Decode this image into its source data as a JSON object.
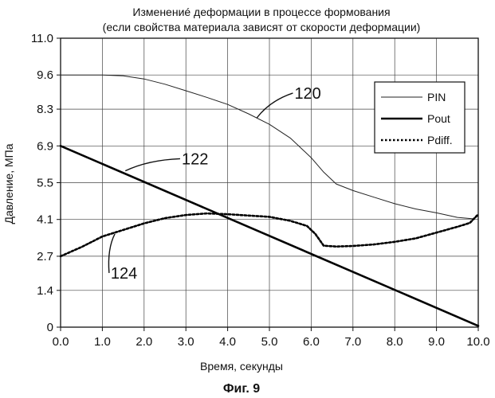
{
  "chart_data": {
    "type": "line",
    "title": "Изменениé деформации в процессе формования",
    "subtitle": "(если свойства материала зависят от скорости деформации)",
    "xlabel": "Время, секунды",
    "ylabel": "Давление, МПа",
    "caption": "Фиг. 9",
    "xlim": [
      0.0,
      10.0
    ],
    "ylim": [
      0,
      11.0
    ],
    "x_ticks": [
      "0.0",
      "1.0",
      "2.0",
      "3.0",
      "4.0",
      "5.0",
      "6.0",
      "7.0",
      "8.0",
      "9.0",
      "10.0"
    ],
    "y_ticks": [
      "0",
      "1.4",
      "2.7",
      "4.1",
      "5.5",
      "6.9",
      "8.3",
      "9.6",
      "11.0"
    ],
    "grid": true,
    "legend_position": "top-right",
    "series": [
      {
        "name": "PIN",
        "style": "thin",
        "x": [
          0,
          1,
          1.5,
          2,
          2.5,
          3,
          3.5,
          4,
          4.5,
          5,
          5.5,
          6,
          6.3,
          6.6,
          7,
          7.5,
          8,
          8.5,
          9,
          9.5,
          9.9,
          10
        ],
        "y": [
          9.6,
          9.6,
          9.57,
          9.45,
          9.25,
          9.0,
          8.75,
          8.48,
          8.12,
          7.72,
          7.2,
          6.45,
          5.9,
          5.45,
          5.2,
          4.95,
          4.7,
          4.5,
          4.35,
          4.18,
          4.12,
          4.25
        ]
      },
      {
        "name": "Pout",
        "style": "thick",
        "x": [
          0,
          10
        ],
        "y": [
          6.9,
          0.05
        ]
      },
      {
        "name": "Pdiff.",
        "style": "dotted",
        "x": [
          0,
          0.5,
          1,
          1.5,
          2,
          2.5,
          3,
          3.5,
          4,
          4.5,
          5,
          5.5,
          5.9,
          6.1,
          6.3,
          6.6,
          7,
          7.5,
          8,
          8.5,
          9,
          9.5,
          9.8,
          10
        ],
        "y": [
          2.7,
          3.05,
          3.45,
          3.7,
          3.95,
          4.15,
          4.27,
          4.33,
          4.3,
          4.25,
          4.2,
          4.05,
          3.85,
          3.55,
          3.1,
          3.07,
          3.09,
          3.15,
          3.25,
          3.38,
          3.6,
          3.82,
          3.97,
          4.3
        ]
      }
    ],
    "annotations": [
      {
        "text": "120",
        "x": 5.6,
        "y": 8.7,
        "point_x": 4.7,
        "point_y": 7.97
      },
      {
        "text": "122",
        "x": 2.9,
        "y": 6.2,
        "point_x": 1.55,
        "point_y": 5.95
      },
      {
        "text": "124",
        "x": 1.2,
        "y": 1.85,
        "point_x": 1.3,
        "point_y": 3.55
      }
    ]
  }
}
